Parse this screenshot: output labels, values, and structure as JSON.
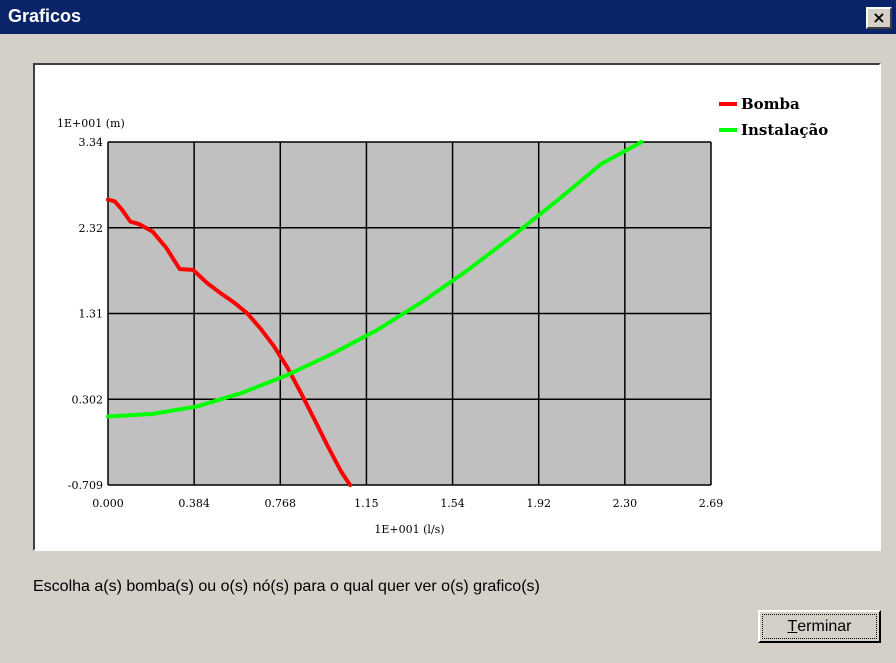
{
  "window": {
    "title": "Graficos",
    "close_glyph": "×"
  },
  "instruction": "Escolha a(s) bomba(s) ou o(s) nó(s) para o qual quer ver o(s) grafico(s)",
  "buttons": {
    "terminar": {
      "accel": "T",
      "rest": "erminar"
    }
  },
  "chart_data": {
    "type": "line",
    "ylabel": "1E+001 (m)",
    "xlabel": "1E+001 (l/s)",
    "x_ticks": [
      "0.000",
      "0.384",
      "0.768",
      "1.15",
      "1.54",
      "1.92",
      "2.30",
      "2.69"
    ],
    "y_ticks": [
      "-0.709",
      "0.302",
      "1.31",
      "2.32",
      "3.34"
    ],
    "xlim": [
      0,
      2.69
    ],
    "ylim": [
      -0.709,
      3.34
    ],
    "grid": true,
    "plot_background": "#c0c0c0",
    "legend_position": "top-right",
    "series": [
      {
        "name": "Bomba",
        "color": "#ff0000",
        "x": [
          0.0,
          0.03,
          0.06,
          0.1,
          0.14,
          0.2,
          0.26,
          0.32,
          0.38,
          0.44,
          0.5,
          0.56,
          0.62,
          0.68,
          0.74,
          0.8,
          0.86,
          0.92,
          0.98,
          1.04,
          1.08
        ],
        "y": [
          2.66,
          2.64,
          2.55,
          2.4,
          2.37,
          2.28,
          2.09,
          1.84,
          1.83,
          1.68,
          1.56,
          1.45,
          1.32,
          1.14,
          0.93,
          0.68,
          0.38,
          0.07,
          -0.25,
          -0.55,
          -0.71
        ]
      },
      {
        "name": "Instalação",
        "color": "#00ff00",
        "x": [
          0.0,
          0.2,
          0.4,
          0.6,
          0.8,
          1.0,
          1.2,
          1.4,
          1.6,
          1.8,
          2.0,
          2.2,
          2.38
        ],
        "y": [
          0.1,
          0.13,
          0.22,
          0.38,
          0.59,
          0.84,
          1.12,
          1.45,
          1.82,
          2.22,
          2.64,
          3.08,
          3.34
        ]
      }
    ]
  }
}
